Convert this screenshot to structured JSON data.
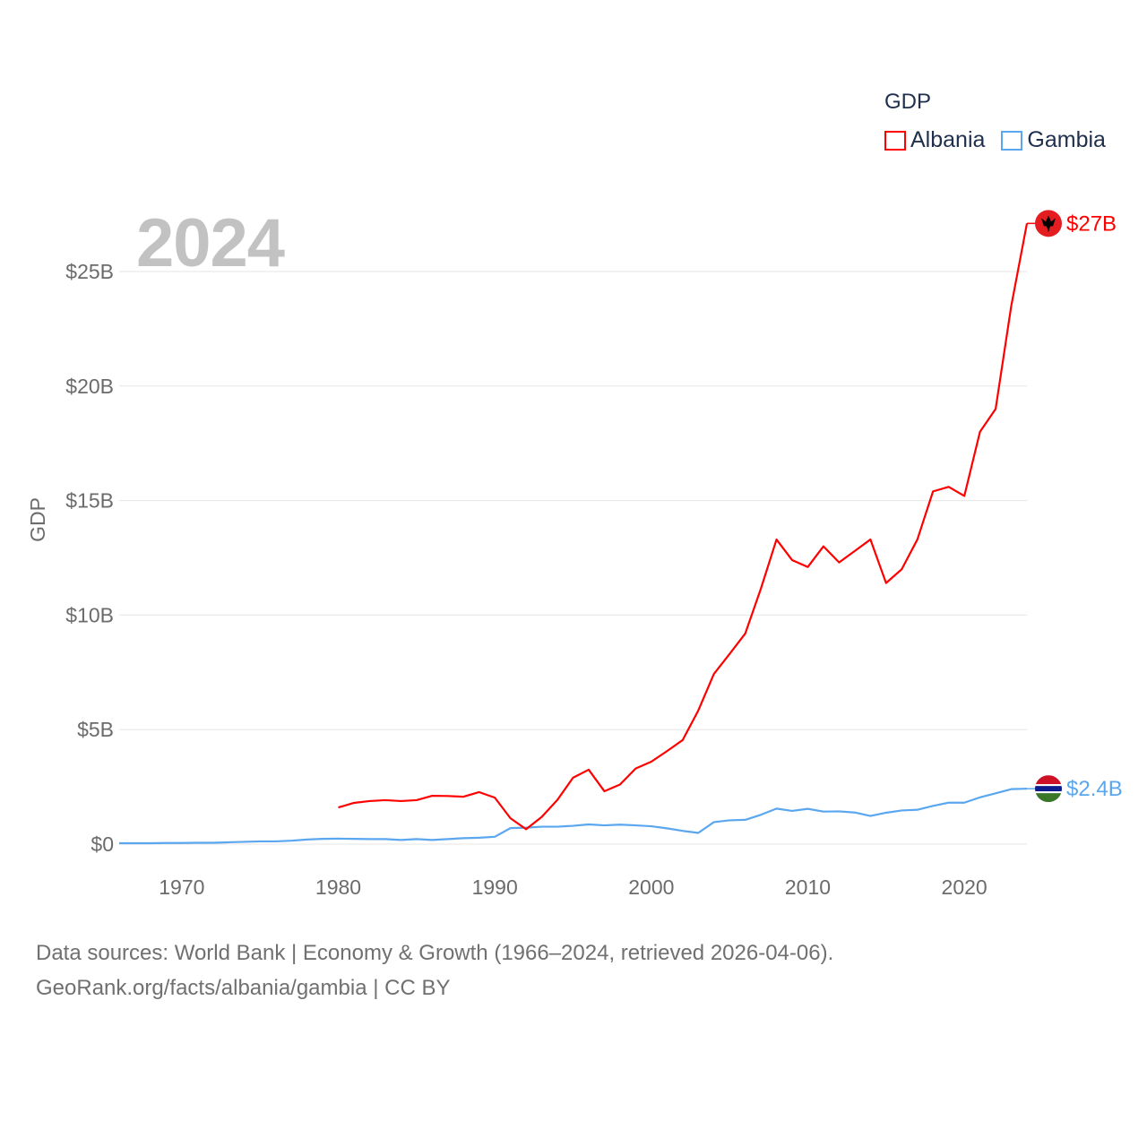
{
  "chart_data": {
    "type": "line",
    "title": "",
    "year_label": "2024",
    "xlabel": "",
    "ylabel": "GDP",
    "xlim": [
      1966,
      2024
    ],
    "ylim": [
      0,
      27.5
    ],
    "x_ticks": [
      1970,
      1980,
      1990,
      2000,
      2010,
      2020
    ],
    "y_ticks": [
      {
        "v": 0,
        "label": "$0"
      },
      {
        "v": 5,
        "label": "$5B"
      },
      {
        "v": 10,
        "label": "$10B"
      },
      {
        "v": 15,
        "label": "$15B"
      },
      {
        "v": 20,
        "label": "$20B"
      },
      {
        "v": 25,
        "label": "$25B"
      }
    ],
    "grid": true,
    "legend": {
      "title": "GDP",
      "placement": "top-right"
    },
    "units": "billion USD",
    "series": [
      {
        "name": "Albania",
        "color": "#ff0000",
        "end_label": "$27B",
        "flag_icon": "albania-flag-icon",
        "x": [
          1980,
          1981,
          1982,
          1983,
          1984,
          1985,
          1986,
          1987,
          1988,
          1989,
          1990,
          1991,
          1992,
          1993,
          1994,
          1995,
          1996,
          1997,
          1998,
          1999,
          2000,
          2001,
          2002,
          2003,
          2004,
          2005,
          2006,
          2007,
          2008,
          2009,
          2010,
          2011,
          2012,
          2013,
          2014,
          2015,
          2016,
          2017,
          2018,
          2019,
          2020,
          2021,
          2022,
          2023,
          2024
        ],
        "values": [
          1.6,
          1.8,
          1.88,
          1.92,
          1.88,
          1.92,
          2.11,
          2.1,
          2.07,
          2.27,
          2.03,
          1.13,
          0.65,
          1.19,
          1.93,
          2.9,
          3.25,
          2.31,
          2.6,
          3.3,
          3.6,
          4.06,
          4.54,
          5.83,
          7.43,
          8.3,
          9.19,
          11.15,
          13.3,
          12.4,
          12.1,
          13.0,
          12.3,
          12.8,
          13.3,
          11.4,
          12.0,
          13.3,
          15.4,
          15.6,
          15.2,
          18.0,
          19.0,
          23.5,
          27.1
        ]
      },
      {
        "name": "Gambia",
        "color": "#5aa7ef",
        "end_label": "$2.4B",
        "flag_icon": "gambia-flag-icon",
        "x": [
          1966,
          1967,
          1968,
          1969,
          1970,
          1971,
          1972,
          1973,
          1974,
          1975,
          1976,
          1977,
          1978,
          1979,
          1980,
          1981,
          1982,
          1983,
          1984,
          1985,
          1986,
          1987,
          1988,
          1989,
          1990,
          1991,
          1992,
          1993,
          1994,
          1995,
          1996,
          1997,
          1998,
          1999,
          2000,
          2001,
          2002,
          2003,
          2004,
          2005,
          2006,
          2007,
          2008,
          2009,
          2010,
          2011,
          2012,
          2013,
          2014,
          2015,
          2016,
          2017,
          2018,
          2019,
          2020,
          2021,
          2022,
          2023,
          2024
        ],
        "values": [
          0.04,
          0.04,
          0.04,
          0.05,
          0.05,
          0.06,
          0.06,
          0.08,
          0.1,
          0.12,
          0.12,
          0.15,
          0.2,
          0.23,
          0.24,
          0.23,
          0.22,
          0.22,
          0.18,
          0.22,
          0.18,
          0.22,
          0.26,
          0.28,
          0.32,
          0.7,
          0.72,
          0.76,
          0.76,
          0.8,
          0.86,
          0.82,
          0.85,
          0.82,
          0.78,
          0.69,
          0.58,
          0.49,
          0.96,
          1.04,
          1.06,
          1.28,
          1.55,
          1.45,
          1.54,
          1.42,
          1.43,
          1.38,
          1.23,
          1.37,
          1.47,
          1.5,
          1.67,
          1.81,
          1.81,
          2.04,
          2.22,
          2.4,
          2.42
        ]
      }
    ]
  },
  "source": {
    "line1": "Data sources: World Bank | Economy & Growth (1966–2024, retrieved 2026-04-06).",
    "line2": "GeoRank.org/facts/albania/gambia | CC BY"
  }
}
